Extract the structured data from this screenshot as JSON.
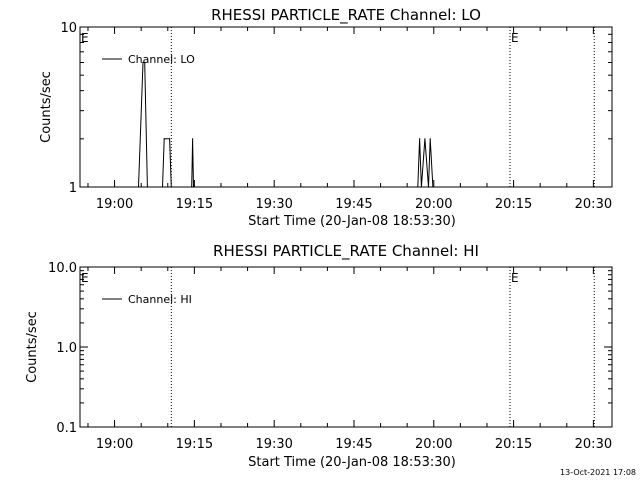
{
  "footer": {
    "timestamp": "13-Oct-2021 17:08"
  },
  "chart_data": [
    {
      "type": "line",
      "title": "RHESSI PARTICLE_RATE Channel: LO",
      "xlabel": "Start Time (20-Jan-08 18:53:30)",
      "ylabel": "Counts/sec",
      "yscale": "log",
      "ylim": [
        1,
        10
      ],
      "yticks": [
        1,
        10
      ],
      "ytick_labels": [
        "1",
        "10"
      ],
      "xlim": [
        "18:53:30",
        "20:33:30"
      ],
      "xticks": [
        "19:00",
        "19:15",
        "19:30",
        "19:45",
        "20:00",
        "20:15",
        "20:30"
      ],
      "series": [
        {
          "name": "Channel: LO",
          "x": [
            "19:04:30",
            "19:05:20",
            "19:05:40",
            "19:06:10",
            "19:09:00",
            "19:09:20",
            "19:10:20",
            "19:10:40",
            "19:14:30",
            "19:14:40",
            "19:14:50",
            "19:57:00",
            "19:57:20",
            "19:57:40",
            "19:58:20",
            "19:59:00",
            "19:59:20",
            "19:59:50"
          ],
          "values": [
            1,
            6,
            6,
            1,
            1,
            2,
            2,
            1,
            1,
            2,
            1,
            1,
            2,
            1,
            2,
            1,
            2,
            1
          ]
        }
      ],
      "vlines": [
        {
          "x": "18:53:30",
          "label": "E"
        },
        {
          "x": "19:10:40",
          "label": ""
        },
        {
          "x": "20:14:20",
          "label": "E"
        },
        {
          "x": "20:30:10",
          "label": ""
        }
      ],
      "legend_position": "top-left"
    },
    {
      "type": "line",
      "title": "RHESSI PARTICLE_RATE Channel: HI",
      "xlabel": "Start Time (20-Jan-08 18:53:30)",
      "ylabel": "Counts/sec",
      "yscale": "log",
      "ylim": [
        0.1,
        10
      ],
      "yticks": [
        0.1,
        1,
        10
      ],
      "ytick_labels": [
        "0.1",
        "1.0",
        "10.0"
      ],
      "xlim": [
        "18:53:30",
        "20:33:30"
      ],
      "xticks": [
        "19:00",
        "19:15",
        "19:30",
        "19:45",
        "20:00",
        "20:15",
        "20:30"
      ],
      "series": [
        {
          "name": "Channel: HI",
          "x": [],
          "values": []
        }
      ],
      "vlines": [
        {
          "x": "18:53:30",
          "label": "E"
        },
        {
          "x": "19:10:40",
          "label": ""
        },
        {
          "x": "20:14:20",
          "label": "E"
        },
        {
          "x": "20:30:10",
          "label": ""
        }
      ],
      "legend_position": "top-left"
    }
  ]
}
